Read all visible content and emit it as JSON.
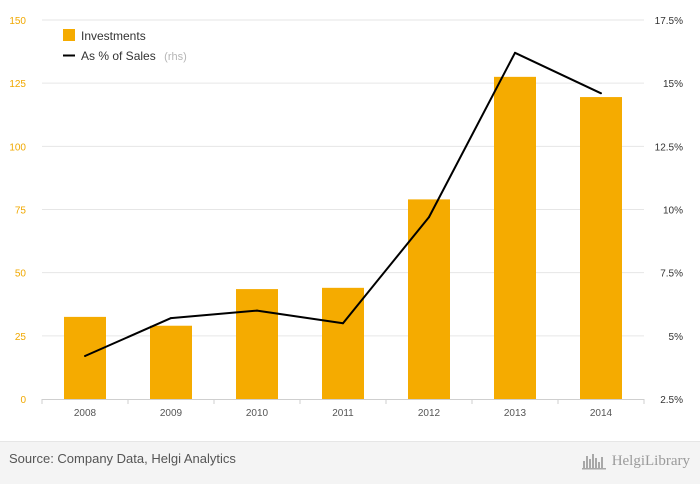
{
  "chart_data": {
    "type": "bar",
    "categories": [
      "2008",
      "2009",
      "2010",
      "2011",
      "2012",
      "2013",
      "2014"
    ],
    "series": [
      {
        "name": "Investments",
        "type": "bar",
        "axis": "left",
        "color": "#f5ab00",
        "values": [
          32.5,
          29,
          43.5,
          44,
          79,
          127.5,
          119.5
        ]
      },
      {
        "name": "As % of Sales",
        "name_suffix": "(rhs)",
        "type": "line",
        "axis": "right",
        "color": "#000000",
        "values": [
          4.2,
          5.7,
          6.0,
          5.5,
          9.7,
          16.2,
          14.6
        ]
      }
    ],
    "ylim_left": [
      0,
      150
    ],
    "yticks_left": [
      "0",
      "25",
      "50",
      "75",
      "100",
      "125",
      "150"
    ],
    "ylim_right": [
      2.5,
      17.5
    ],
    "yticks_right": [
      "2.5%",
      "5%",
      "7.5%",
      "10%",
      "12.5%",
      "15%",
      "17.5%"
    ],
    "grid": true,
    "legend_position": "top-left"
  },
  "footer": {
    "source": "Source: Company Data, Helgi Analytics",
    "brand": "HelgiLibrary"
  }
}
